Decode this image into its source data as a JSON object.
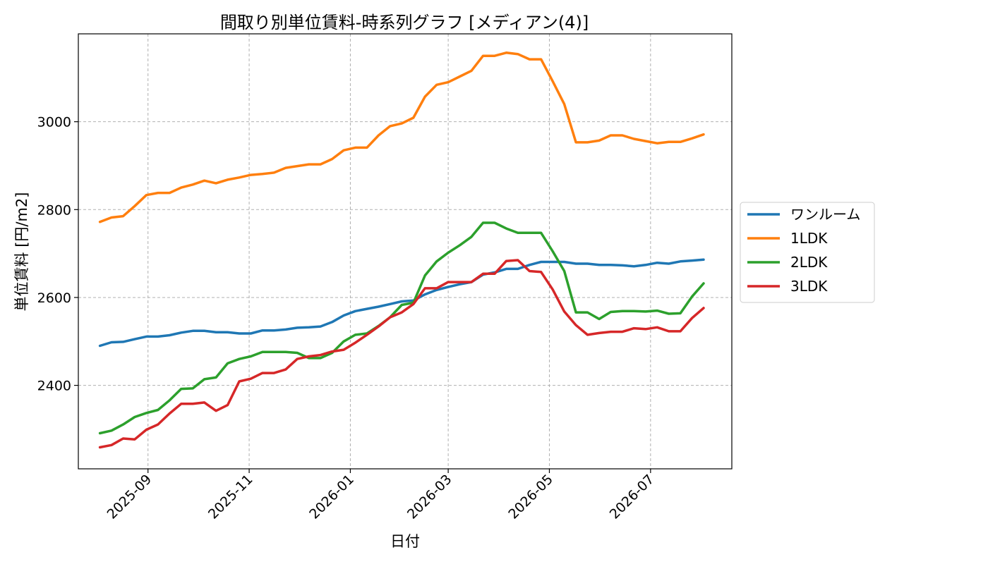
{
  "chart_data": {
    "type": "line",
    "title": "間取り別単位賃料-時系列グラフ [メディアン(4)]",
    "xlabel": "日付",
    "ylabel": "単位賃料 [円/m2]",
    "xlim": [
      "2025-07-21",
      "2026-08-19"
    ],
    "ylim": [
      2210,
      3200
    ],
    "yticks": [
      2400,
      2600,
      2800,
      3000
    ],
    "xticks": [
      {
        "date": "2025-09-01",
        "label": "2025-09"
      },
      {
        "date": "2025-11-01",
        "label": "2025-11"
      },
      {
        "date": "2026-01-01",
        "label": "2026-01"
      },
      {
        "date": "2026-03-01",
        "label": "2026-03"
      },
      {
        "date": "2026-05-01",
        "label": "2026-05"
      },
      {
        "date": "2026-07-01",
        "label": "2026-07"
      }
    ],
    "grid": true,
    "legend_position": "right-outside",
    "x": [
      "2025-08-03",
      "2025-08-10",
      "2025-08-17",
      "2025-08-24",
      "2025-08-31",
      "2025-09-07",
      "2025-09-14",
      "2025-09-21",
      "2025-09-28",
      "2025-10-05",
      "2025-10-12",
      "2025-10-19",
      "2025-10-26",
      "2025-11-02",
      "2025-11-09",
      "2025-11-16",
      "2025-11-23",
      "2025-11-30",
      "2025-12-07",
      "2025-12-14",
      "2025-12-21",
      "2025-12-28",
      "2026-01-04",
      "2026-01-11",
      "2026-01-18",
      "2026-01-25",
      "2026-02-01",
      "2026-02-08",
      "2026-02-15",
      "2026-02-22",
      "2026-03-01",
      "2026-03-08",
      "2026-03-15",
      "2026-03-22",
      "2026-03-29",
      "2026-04-05",
      "2026-04-12",
      "2026-04-19",
      "2026-04-26",
      "2026-05-03",
      "2026-05-10",
      "2026-05-17",
      "2026-05-24",
      "2026-05-31",
      "2026-06-07",
      "2026-06-14",
      "2026-06-21",
      "2026-06-28",
      "2026-07-05",
      "2026-07-12",
      "2026-07-19",
      "2026-07-26",
      "2026-08-02"
    ],
    "series": [
      {
        "name": "ワンルーム",
        "color": "#1f77b4",
        "values": [
          2490,
          2498,
          2499,
          2505,
          2511,
          2511,
          2514,
          2520,
          2524,
          2524,
          2521,
          2521,
          2518,
          2518,
          2525,
          2525,
          2527,
          2531,
          2532,
          2534,
          2544,
          2559,
          2569,
          2574,
          2579,
          2585,
          2591,
          2593,
          2607,
          2617,
          2624,
          2630,
          2635,
          2652,
          2657,
          2665,
          2665,
          2674,
          2681,
          2681,
          2681,
          2677,
          2677,
          2674,
          2674,
          2673,
          2671,
          2674,
          2679,
          2677,
          2682,
          2684,
          2686
        ]
      },
      {
        "name": "1LDK",
        "color": "#ff7f0e",
        "values": [
          2772,
          2782,
          2785,
          2808,
          2833,
          2838,
          2838,
          2850,
          2857,
          2866,
          2860,
          2868,
          2873,
          2879,
          2881,
          2884,
          2895,
          2899,
          2903,
          2903,
          2915,
          2935,
          2941,
          2941,
          2969,
          2990,
          2996,
          3009,
          3057,
          3084,
          3090,
          3103,
          3116,
          3150,
          3150,
          3157,
          3154,
          3142,
          3142,
          3092,
          3040,
          2953,
          2953,
          2957,
          2969,
          2969,
          2961,
          2956,
          2951,
          2954,
          2954,
          2962,
          2971
        ]
      },
      {
        "name": "2LDK",
        "color": "#2ca02c",
        "values": [
          2291,
          2297,
          2311,
          2328,
          2337,
          2344,
          2366,
          2392,
          2393,
          2414,
          2418,
          2450,
          2460,
          2466,
          2476,
          2476,
          2476,
          2474,
          2462,
          2462,
          2474,
          2500,
          2515,
          2518,
          2535,
          2555,
          2583,
          2588,
          2650,
          2682,
          2702,
          2719,
          2738,
          2770,
          2770,
          2757,
          2747,
          2747,
          2747,
          2705,
          2660,
          2566,
          2566,
          2551,
          2567,
          2569,
          2569,
          2568,
          2570,
          2563,
          2564,
          2602,
          2632
        ]
      },
      {
        "name": "3LDK",
        "color": "#d62728",
        "values": [
          2259,
          2264,
          2279,
          2277,
          2299,
          2311,
          2336,
          2358,
          2358,
          2361,
          2342,
          2355,
          2409,
          2415,
          2428,
          2428,
          2436,
          2460,
          2466,
          2469,
          2477,
          2481,
          2497,
          2515,
          2534,
          2555,
          2566,
          2585,
          2621,
          2621,
          2635,
          2635,
          2635,
          2654,
          2654,
          2683,
          2685,
          2660,
          2658,
          2618,
          2568,
          2537,
          2515,
          2519,
          2522,
          2522,
          2530,
          2528,
          2532,
          2523,
          2523,
          2553,
          2576
        ]
      }
    ]
  }
}
